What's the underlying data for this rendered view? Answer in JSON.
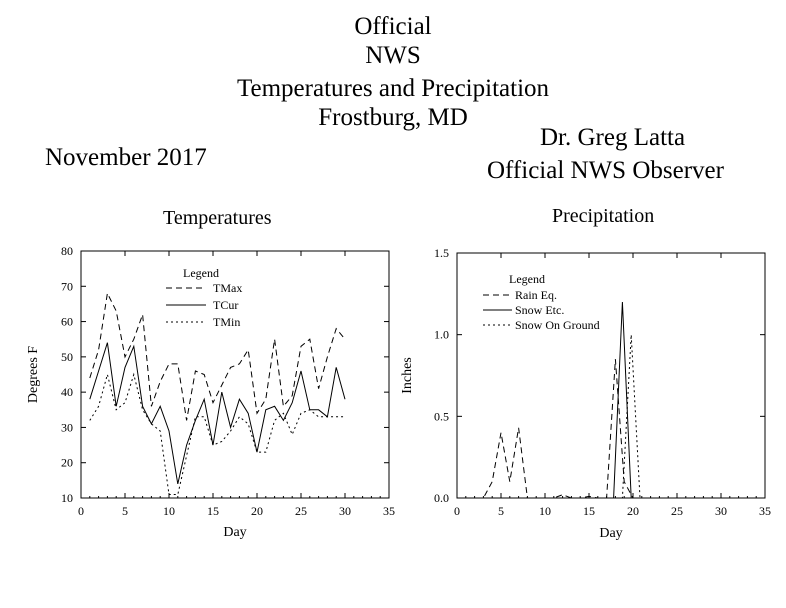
{
  "header": {
    "line1": "Official",
    "line2": "NWS",
    "line3": "Temperatures and Precipitation",
    "line4": "Frostburg, MD",
    "month": "November 2017",
    "observer_name": "Dr. Greg Latta",
    "observer_title": "Official NWS Observer"
  },
  "chart_data": [
    {
      "type": "line",
      "title": "Temperatures",
      "xlabel": "Day",
      "ylabel": "Degrees F",
      "xlim": [
        0,
        35
      ],
      "ylim": [
        10,
        80
      ],
      "xticks": [
        0,
        5,
        10,
        15,
        20,
        25,
        30,
        35
      ],
      "yticks": [
        10,
        20,
        30,
        40,
        50,
        60,
        70,
        80
      ],
      "legend_title": "Legend",
      "legend_position": "top-left",
      "grid": false,
      "x": [
        1,
        2,
        3,
        4,
        5,
        6,
        7,
        8,
        9,
        10,
        11,
        12,
        13,
        14,
        15,
        16,
        17,
        18,
        19,
        20,
        21,
        22,
        23,
        24,
        25,
        26,
        27,
        28,
        29,
        30
      ],
      "series": [
        {
          "name": "TMax",
          "style": "dashed",
          "values": [
            44,
            52,
            68,
            63,
            50,
            55,
            62,
            36,
            43,
            48,
            48,
            32,
            46,
            45,
            37,
            42,
            47,
            48,
            52,
            34,
            38,
            55,
            36,
            39,
            53,
            55,
            41,
            50,
            58,
            55
          ]
        },
        {
          "name": "TCur",
          "style": "solid",
          "values": [
            38,
            46,
            54,
            36,
            47,
            53,
            36,
            31,
            36,
            29,
            14,
            25,
            32,
            38,
            25,
            40,
            30,
            38,
            34,
            23,
            35,
            36,
            32,
            37,
            46,
            35,
            35,
            33,
            47,
            38
          ]
        },
        {
          "name": "TMin",
          "style": "dotted",
          "values": [
            32,
            36,
            45,
            35,
            37,
            45,
            35,
            31,
            29,
            11,
            11,
            22,
            33,
            33,
            25,
            26,
            29,
            33,
            31,
            23,
            23,
            32,
            34,
            28,
            34,
            35,
            33,
            33,
            33,
            33
          ]
        }
      ]
    },
    {
      "type": "line",
      "title": "Precipitation",
      "xlabel": "Day",
      "ylabel": "Inches",
      "xlim": [
        0,
        35
      ],
      "ylim": [
        0,
        1.5
      ],
      "xticks": [
        0,
        5,
        10,
        15,
        20,
        25,
        30,
        35
      ],
      "yticks": [
        0.0,
        0.5,
        1.0,
        1.5
      ],
      "legend_title": "Legend",
      "legend_position": "top-left",
      "grid": false,
      "series": [
        {
          "name": "Rain Eq.",
          "style": "dashed",
          "x": [
            1,
            2,
            3,
            4,
            5,
            6,
            7,
            8,
            9,
            10,
            11,
            12,
            13,
            14,
            15,
            16,
            17,
            18,
            19,
            20,
            21
          ],
          "values": [
            0,
            0,
            0,
            0.1,
            0.4,
            0.1,
            0.43,
            0,
            0,
            0,
            0,
            0.02,
            0,
            0,
            0.01,
            0,
            0,
            0.85,
            0.1,
            0,
            0
          ]
        },
        {
          "name": "Snow Etc.",
          "style": "solid",
          "x": [
            17,
            17.8,
            18.8,
            19.8,
            21
          ],
          "values": [
            0,
            0,
            1.2,
            0,
            0
          ]
        },
        {
          "name": "Snow On Ground",
          "style": "dotted",
          "x": [
            17,
            18,
            18.8,
            19.8,
            20.8,
            21
          ],
          "values": [
            0,
            0,
            0,
            1.0,
            0,
            0
          ]
        }
      ]
    }
  ]
}
